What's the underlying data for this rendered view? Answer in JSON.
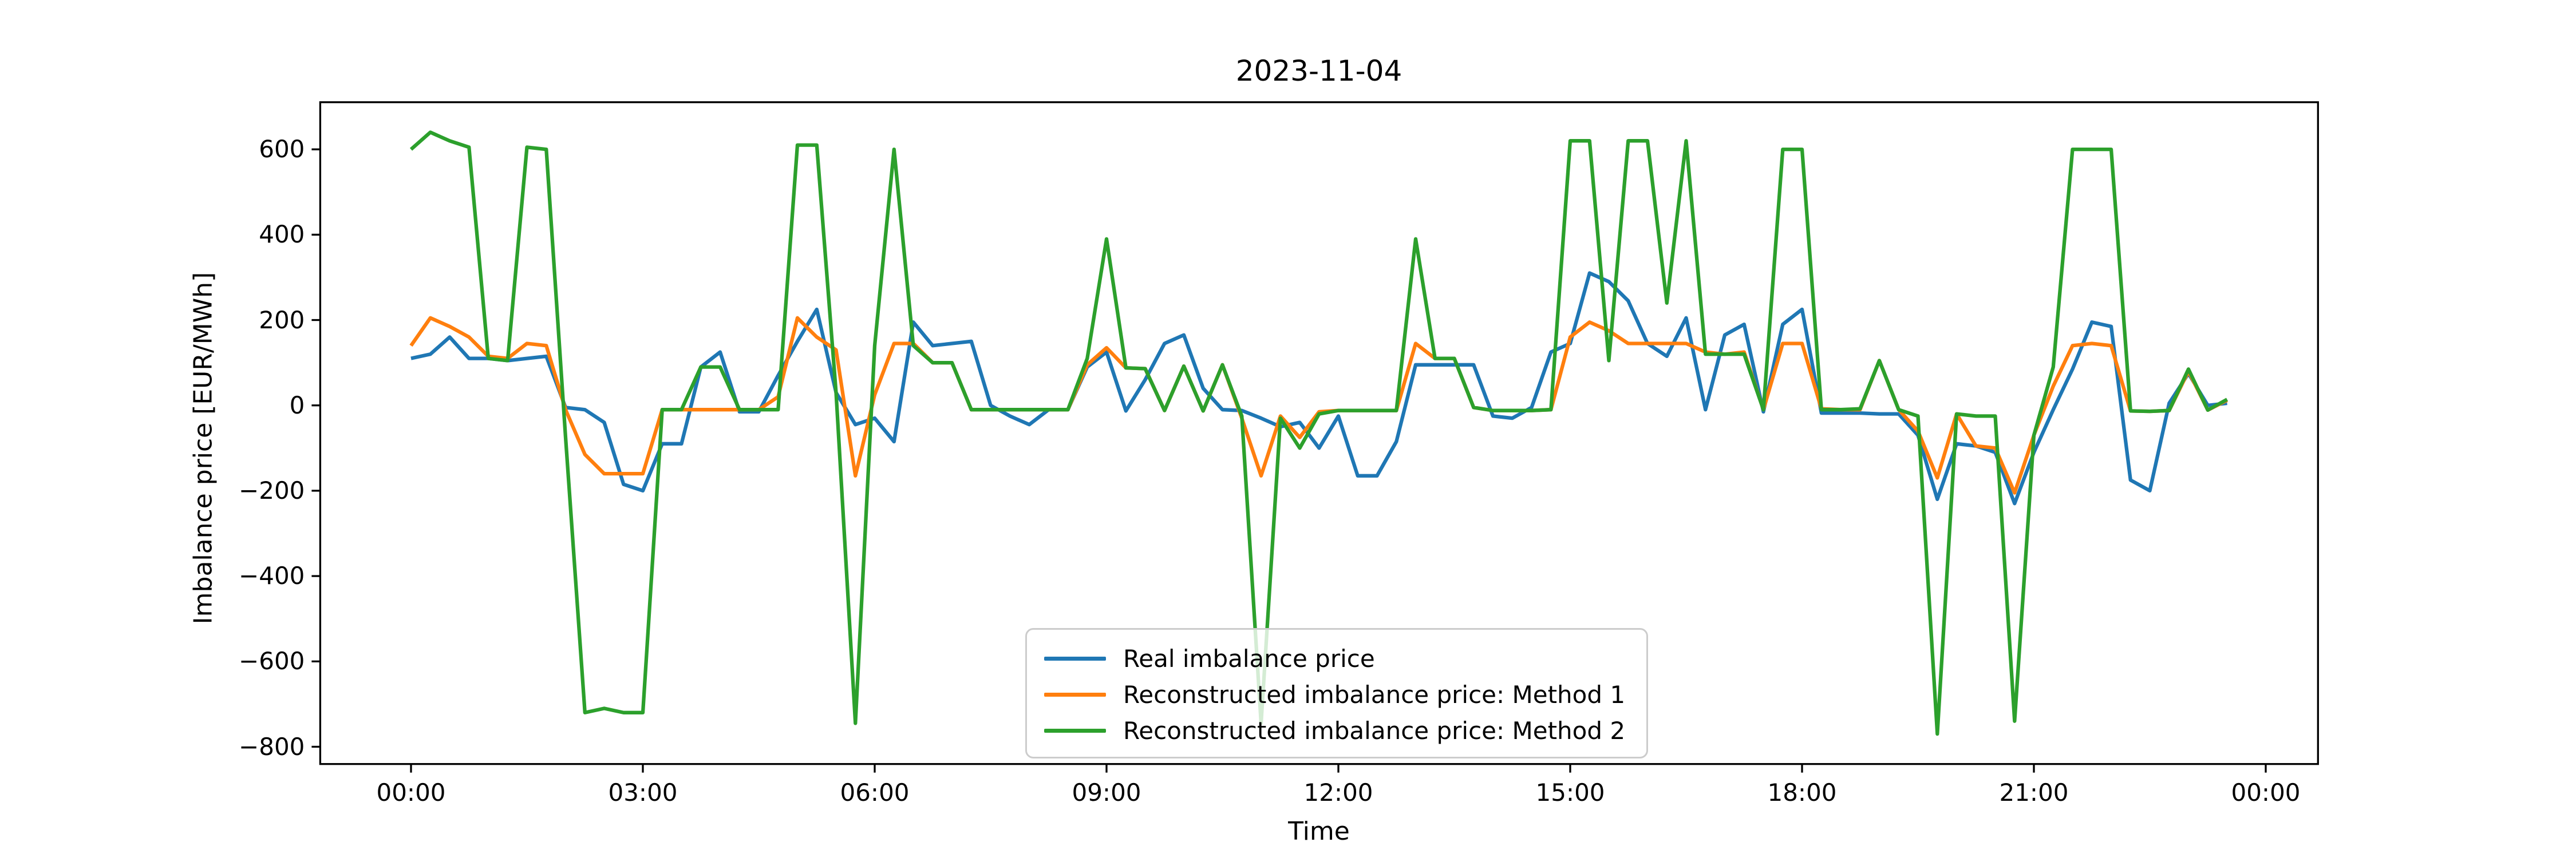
{
  "title": "2023-11-04",
  "axes": {
    "xlabel": "Time",
    "ylabel": "Imbalance price [EUR/MWh]",
    "x_tick_labels": [
      "00:00",
      "03:00",
      "06:00",
      "09:00",
      "12:00",
      "15:00",
      "18:00",
      "21:00",
      "00:00"
    ],
    "x_tick_hours": [
      0,
      3,
      6,
      9,
      12,
      15,
      18,
      21,
      24
    ],
    "y_tick_labels": [
      "600",
      "400",
      "200",
      "0",
      "−200",
      "−400",
      "−600",
      "−800"
    ],
    "y_tick_values": [
      600,
      400,
      200,
      0,
      -200,
      -400,
      -600,
      -800
    ]
  },
  "legend": {
    "entries": [
      {
        "label": "Real imbalance price",
        "color": "#1f77b4"
      },
      {
        "label": "Reconstructed imbalance price: Method 1",
        "color": "#ff7f0e"
      },
      {
        "label": "Reconstructed imbalance price: Method 2",
        "color": "#2ca02c"
      }
    ]
  },
  "chart_data": {
    "type": "line",
    "title": "2023-11-04",
    "xlabel": "Time",
    "ylabel": "Imbalance price [EUR/MWh]",
    "x_start_hour": 0,
    "x_step_minutes": 15,
    "xlim_hours": [
      -1.175,
      24.675
    ],
    "ylim": [
      -840.5,
      710.5
    ],
    "grid": false,
    "legend_position": "lower center",
    "x_times": [
      "00:00",
      "00:15",
      "00:30",
      "00:45",
      "01:00",
      "01:15",
      "01:30",
      "01:45",
      "02:00",
      "02:15",
      "02:30",
      "02:45",
      "03:00",
      "03:15",
      "03:30",
      "03:45",
      "04:00",
      "04:15",
      "04:30",
      "04:45",
      "05:00",
      "05:15",
      "05:30",
      "05:45",
      "06:00",
      "06:15",
      "06:30",
      "06:45",
      "07:00",
      "07:15",
      "07:30",
      "07:45",
      "08:00",
      "08:15",
      "08:30",
      "08:45",
      "09:00",
      "09:15",
      "09:30",
      "09:45",
      "10:00",
      "10:15",
      "10:30",
      "10:45",
      "11:00",
      "11:15",
      "11:30",
      "11:45",
      "12:00",
      "12:15",
      "12:30",
      "12:45",
      "13:00",
      "13:15",
      "13:30",
      "13:45",
      "14:00",
      "14:15",
      "14:30",
      "14:45",
      "15:00",
      "15:15",
      "15:30",
      "15:45",
      "16:00",
      "16:15",
      "16:30",
      "16:45",
      "17:00",
      "17:15",
      "17:30",
      "17:45",
      "18:00",
      "18:15",
      "18:30",
      "18:45",
      "19:00",
      "19:15",
      "19:30",
      "19:45",
      "20:00",
      "20:15",
      "20:30",
      "20:45",
      "21:00",
      "21:15",
      "21:30",
      "21:45",
      "22:00",
      "22:15",
      "22:30",
      "22:45",
      "23:00",
      "23:15",
      "23:30"
    ],
    "series": [
      {
        "name": "Real imbalance price",
        "color": "#1f77b4",
        "values": [
          110,
          120,
          160,
          110,
          110,
          105,
          110,
          115,
          -5,
          -10,
          -40,
          -185,
          -200,
          -90,
          -90,
          90,
          125,
          -15,
          -15,
          70,
          150,
          225,
          30,
          -45,
          -30,
          -85,
          195,
          140,
          145,
          150,
          0,
          -25,
          -45,
          -10,
          -10,
          90,
          125,
          -13,
          60,
          145,
          165,
          40,
          -10,
          -12,
          -30,
          -50,
          -40,
          -100,
          -25,
          -165,
          -165,
          -85,
          95,
          95,
          95,
          95,
          -25,
          -30,
          -5,
          125,
          145,
          310,
          290,
          245,
          145,
          115,
          205,
          -10,
          165,
          190,
          -15,
          190,
          225,
          -18,
          -18,
          -18,
          -20,
          -20,
          -70,
          -220,
          -90,
          -95,
          -110,
          -230,
          -110,
          -10,
          85,
          195,
          185,
          -175,
          -200,
          5,
          75,
          0,
          5
        ]
      },
      {
        "name": "Reconstructed imbalance price: Method 1",
        "color": "#ff7f0e",
        "values": [
          140,
          205,
          185,
          160,
          115,
          110,
          145,
          140,
          -10,
          -115,
          -160,
          -160,
          -160,
          -10,
          -10,
          -10,
          -10,
          -10,
          -10,
          20,
          205,
          160,
          130,
          -165,
          25,
          145,
          145,
          100,
          100,
          -10,
          -10,
          -10,
          -10,
          -10,
          -10,
          95,
          135,
          88,
          86,
          -12,
          92,
          -13,
          95,
          -30,
          -165,
          -25,
          -75,
          -15,
          -12,
          -12,
          -12,
          -12,
          145,
          110,
          110,
          -5,
          -12,
          -12,
          -12,
          -10,
          160,
          195,
          175,
          145,
          145,
          145,
          145,
          125,
          120,
          125,
          -10,
          145,
          145,
          -8,
          -10,
          -10,
          105,
          -10,
          -60,
          -170,
          -20,
          -95,
          -100,
          -205,
          -70,
          45,
          140,
          145,
          140,
          -13,
          -14,
          -12,
          80,
          -11,
          12
        ]
      },
      {
        "name": "Reconstructed imbalance price: Method 2",
        "color": "#2ca02c",
        "values": [
          600,
          640,
          620,
          605,
          110,
          105,
          605,
          600,
          -75,
          -720,
          -710,
          -720,
          -720,
          -10,
          -10,
          90,
          90,
          -10,
          -10,
          -10,
          610,
          610,
          30,
          -745,
          140,
          600,
          140,
          100,
          100,
          -10,
          -10,
          -10,
          -10,
          -10,
          -10,
          110,
          390,
          88,
          86,
          -12,
          92,
          -13,
          95,
          -25,
          -745,
          -30,
          -100,
          -20,
          -12,
          -12,
          -12,
          -12,
          390,
          110,
          110,
          -5,
          -12,
          -12,
          -12,
          -10,
          620,
          620,
          105,
          620,
          620,
          240,
          620,
          120,
          120,
          120,
          -10,
          600,
          600,
          -10,
          -10,
          -8,
          105,
          -10,
          -25,
          -770,
          -20,
          -25,
          -25,
          -740,
          -70,
          90,
          600,
          600,
          600,
          -13,
          -14,
          -12,
          85,
          -11,
          14
        ]
      }
    ]
  }
}
